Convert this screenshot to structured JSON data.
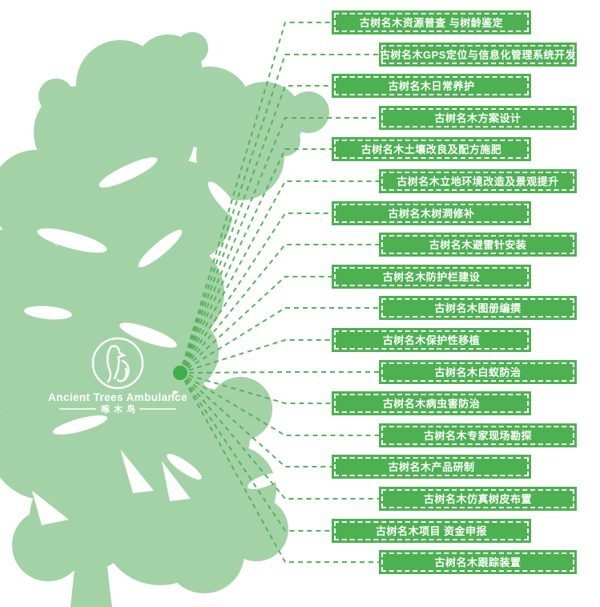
{
  "logo": {
    "title": "Ancient Trees Ambulance",
    "subtitle": "啄木鸟",
    "icon": "woodpecker-logo-icon"
  },
  "diagram": {
    "services": [
      "古树名木资源普查 与树龄鉴定",
      "古树名木GPS定位与信息化管理系统开发",
      "古树名木日常养护",
      "古树名木方案设计",
      "古树名木土壤改良及配方施肥",
      "古树名木立地环境改造及景观提升",
      "古树名木树洞修补",
      "古树名木避雷针安装",
      "古树名木防护栏建设",
      "古树名木图册编撰",
      "古树名木保护性移植",
      "古树名木白蚁防治",
      "古树名木病虫害防治",
      "古树名木专家现场勘探",
      "古树名木产品研制",
      "古树名木仿真树皮布置",
      "古树名木项目 资金申报",
      "古树名木跟踪装置"
    ]
  },
  "colors": {
    "tree_green": "#a3d2a7",
    "box_green": "#4db152",
    "line_green": "#55b35a",
    "hub_green": "#3fae4b",
    "text_white": "#ffffff",
    "background": "#ffffff"
  }
}
